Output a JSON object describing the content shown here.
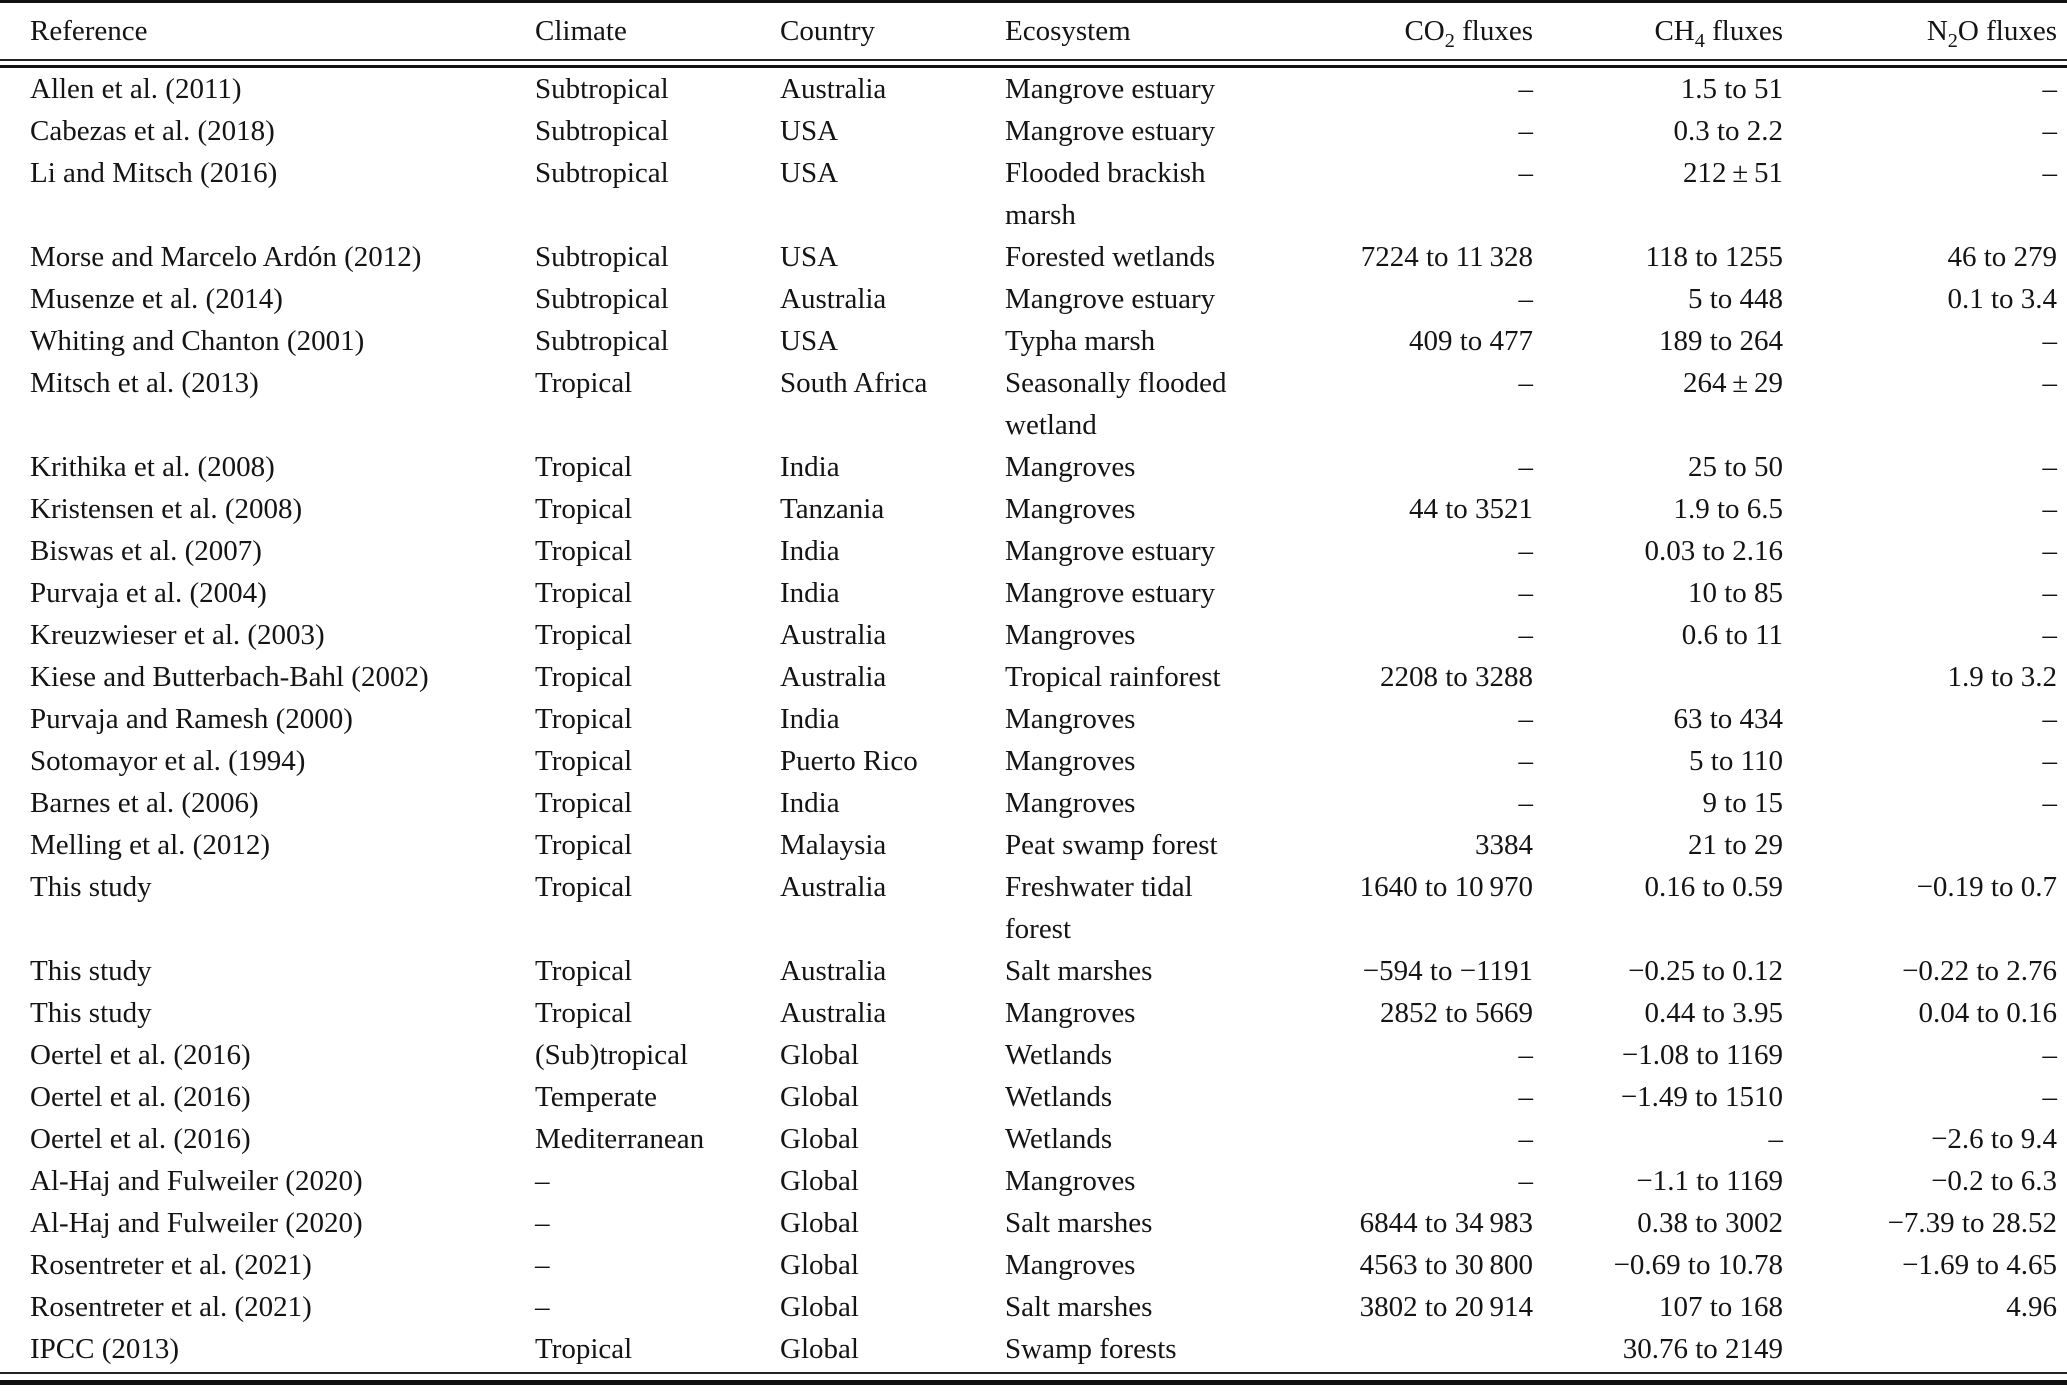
{
  "colors": {
    "text": "#141414",
    "rule": "#111111",
    "background": "#ffffff"
  },
  "table": {
    "columns": [
      {
        "key": "reference",
        "pre": "Reference",
        "sub": "",
        "post": "",
        "align": "left"
      },
      {
        "key": "climate",
        "pre": "Climate",
        "sub": "",
        "post": "",
        "align": "left"
      },
      {
        "key": "country",
        "pre": "Country",
        "sub": "",
        "post": "",
        "align": "left"
      },
      {
        "key": "ecosystem",
        "pre": "Ecosystem",
        "sub": "",
        "post": "",
        "align": "left"
      },
      {
        "key": "co2-fluxes",
        "pre": "CO",
        "sub": "2",
        "post": " fluxes",
        "align": "right"
      },
      {
        "key": "ch4-fluxes",
        "pre": "CH",
        "sub": "4",
        "post": " fluxes",
        "align": "right"
      },
      {
        "key": "n2o-fluxes",
        "pre": "N",
        "sub": "2",
        "post": "O fluxes",
        "align": "right"
      }
    ],
    "rows": [
      [
        "Allen et al. (2011)",
        "Subtropical",
        "Australia",
        "Mangrove estuary",
        "–",
        "1.5 to 51",
        "–"
      ],
      [
        "Cabezas et al. (2018)",
        "Subtropical",
        "USA",
        "Mangrove estuary",
        "–",
        "0.3 to 2.2",
        "–"
      ],
      [
        "Li and Mitsch (2016)",
        "Subtropical",
        "USA",
        "Flooded brackish\nmarsh",
        "–",
        "212 ± 51",
        "–"
      ],
      [
        "Morse and Marcelo Ardón (2012)",
        "Subtropical",
        "USA",
        "Forested wetlands",
        "7224 to 11 328",
        "118 to 1255",
        "46 to 279"
      ],
      [
        "Musenze et al. (2014)",
        "Subtropical",
        "Australia",
        "Mangrove estuary",
        "–",
        "5 to 448",
        "0.1 to 3.4"
      ],
      [
        "Whiting and Chanton (2001)",
        "Subtropical",
        "USA",
        "Typha marsh",
        "409 to 477",
        "189 to 264",
        "–"
      ],
      [
        "Mitsch et al. (2013)",
        "Tropical",
        "South Africa",
        "Seasonally flooded\nwetland",
        "–",
        "264 ± 29",
        "–"
      ],
      [
        "Krithika et al. (2008)",
        "Tropical",
        "India",
        "Mangroves",
        "–",
        "25 to 50",
        "–"
      ],
      [
        "Kristensen et al. (2008)",
        "Tropical",
        "Tanzania",
        "Mangroves",
        "44 to 3521",
        "1.9 to 6.5",
        "–"
      ],
      [
        "Biswas et al. (2007)",
        "Tropical",
        "India",
        "Mangrove estuary",
        "–",
        "0.03 to 2.16",
        "–"
      ],
      [
        "Purvaja et al. (2004)",
        "Tropical",
        "India",
        "Mangrove estuary",
        "–",
        "10 to 85",
        "–"
      ],
      [
        "Kreuzwieser et al. (2003)",
        "Tropical",
        "Australia",
        "Mangroves",
        "–",
        "0.6 to 11",
        "–"
      ],
      [
        "Kiese and Butterbach-Bahl (2002)",
        "Tropical",
        "Australia",
        "Tropical rainforest",
        "2208 to 3288",
        "",
        "1.9 to 3.2"
      ],
      [
        "Purvaja and Ramesh (2000)",
        "Tropical",
        "India",
        "Mangroves",
        "–",
        "63 to 434",
        "–"
      ],
      [
        "Sotomayor et al. (1994)",
        "Tropical",
        "Puerto Rico",
        "Mangroves",
        "–",
        "5 to 110",
        "–"
      ],
      [
        "Barnes et al. (2006)",
        "Tropical",
        "India",
        "Mangroves",
        "–",
        "9 to 15",
        "–"
      ],
      [
        "Melling et al. (2012)",
        "Tropical",
        "Malaysia",
        "Peat swamp forest",
        "3384",
        "21 to 29",
        ""
      ],
      [
        "This study",
        "Tropical",
        "Australia",
        "Freshwater tidal\nforest",
        "1640 to 10 970",
        "0.16 to 0.59",
        "−0.19 to 0.7"
      ],
      [
        "This study",
        "Tropical",
        "Australia",
        "Salt marshes",
        "−594 to −1191",
        "−0.25 to 0.12",
        "−0.22 to 2.76"
      ],
      [
        "This study",
        "Tropical",
        "Australia",
        "Mangroves",
        "2852 to 5669",
        "0.44 to 3.95",
        "0.04 to 0.16"
      ],
      [
        "Oertel et al. (2016)",
        "(Sub)tropical",
        "Global",
        "Wetlands",
        "–",
        "−1.08 to 1169",
        "–"
      ],
      [
        "Oertel et al. (2016)",
        "Temperate",
        "Global",
        "Wetlands",
        "–",
        "−1.49 to 1510",
        "–"
      ],
      [
        "Oertel et al. (2016)",
        "Mediterranean",
        "Global",
        "Wetlands",
        "–",
        "–",
        "−2.6 to 9.4"
      ],
      [
        "Al-Haj and Fulweiler (2020)",
        "–",
        "Global",
        "Mangroves",
        "–",
        "−1.1 to 1169",
        "−0.2 to 6.3"
      ],
      [
        "Al-Haj and Fulweiler (2020)",
        "–",
        "Global",
        "Salt marshes",
        "6844 to 34 983",
        "0.38 to 3002",
        "−7.39 to 28.52"
      ],
      [
        "Rosentreter et al. (2021)",
        "–",
        "Global",
        "Mangroves",
        "4563 to 30 800",
        "−0.69 to 10.78",
        "−1.69 to 4.65"
      ],
      [
        "Rosentreter et al. (2021)",
        "–",
        "Global",
        "Salt marshes",
        "3802 to 20 914",
        "107 to 168",
        "4.96"
      ],
      [
        "IPCC (2013)",
        "Tropical",
        "Global",
        "Swamp forests",
        "",
        "30.76 to 2149",
        ""
      ]
    ]
  }
}
